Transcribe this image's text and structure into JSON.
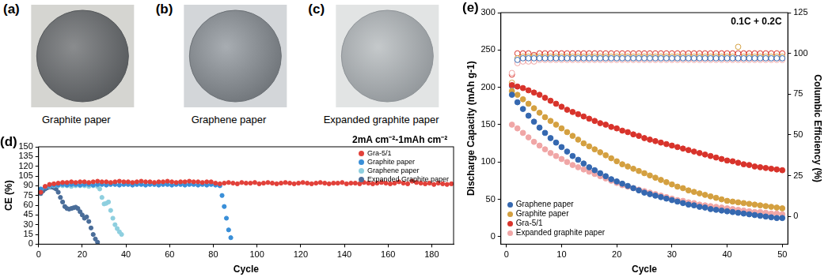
{
  "photos": [
    {
      "label": "(a)",
      "caption": "Graphite paper"
    },
    {
      "label": "(b)",
      "caption": "Graphene paper"
    },
    {
      "label": "(c)",
      "caption": "Expanded graphite paper"
    }
  ],
  "chart_data": [
    {
      "type": "scatter",
      "title": "(d)",
      "annotations": [
        "2mA cm⁻²-1mAh cm⁻²"
      ],
      "x_label": "Cycle",
      "y_label": "CE (%)",
      "xlim": [
        0,
        190
      ],
      "xticks": [
        0,
        20,
        40,
        60,
        80,
        100,
        120,
        140,
        160,
        180
      ],
      "ylim": [
        0,
        150
      ],
      "yticks": [
        0,
        15,
        30,
        45,
        60,
        75,
        90,
        105,
        120,
        135,
        150
      ],
      "legend": "upper right",
      "series": [
        {
          "name": "Gra-5/1",
          "color": "#e2413a",
          "marker": "circle",
          "x": [
            1,
            3,
            5,
            7,
            9,
            11,
            13,
            15,
            17,
            19,
            21,
            23,
            25,
            27,
            29,
            31,
            33,
            35,
            37,
            39,
            41,
            43,
            45,
            47,
            49,
            51,
            53,
            55,
            57,
            59,
            61,
            63,
            65,
            67,
            69,
            71,
            73,
            75,
            77,
            79,
            81,
            83,
            85,
            87,
            89,
            91,
            93,
            95,
            97,
            99,
            101,
            103,
            105,
            107,
            109,
            111,
            113,
            115,
            117,
            119,
            121,
            123,
            125,
            127,
            129,
            131,
            133,
            135,
            137,
            139,
            141,
            143,
            145,
            147,
            149,
            151,
            153,
            155,
            157,
            159,
            161,
            163,
            165,
            167,
            169,
            171,
            173,
            175,
            177,
            179,
            181,
            183,
            185,
            187,
            189
          ],
          "values": [
            80,
            89,
            92,
            93,
            94,
            95,
            95,
            96,
            95,
            96,
            96,
            95,
            96,
            97,
            96,
            96,
            95,
            96,
            97,
            96,
            96,
            95,
            96,
            97,
            96,
            96,
            95,
            96,
            96,
            97,
            96,
            95,
            96,
            96,
            97,
            96,
            96,
            95,
            96,
            96,
            94,
            93,
            94,
            95,
            94,
            93,
            95,
            94,
            94,
            95,
            93,
            94,
            95,
            94,
            93,
            94,
            95,
            94,
            93,
            94,
            95,
            94,
            93,
            94,
            95,
            94,
            93,
            94,
            94,
            95,
            93,
            94,
            94,
            93,
            95,
            94,
            93,
            94,
            95,
            94,
            93,
            94,
            96,
            94,
            93,
            97,
            95,
            94,
            93,
            94,
            92,
            94,
            93,
            92,
            93
          ]
        },
        {
          "name": "Graphite paper",
          "color": "#3a8fd8",
          "marker": "circle",
          "x": [
            1,
            3,
            5,
            7,
            9,
            11,
            13,
            15,
            17,
            19,
            21,
            23,
            25,
            27,
            29,
            31,
            33,
            35,
            37,
            39,
            41,
            43,
            45,
            47,
            49,
            51,
            53,
            55,
            57,
            59,
            61,
            63,
            65,
            67,
            69,
            71,
            73,
            75,
            77,
            79,
            81,
            83,
            84,
            85,
            86,
            87,
            88
          ],
          "values": [
            85,
            88,
            90,
            91,
            91,
            92,
            91,
            92,
            92,
            91,
            92,
            92,
            91,
            92,
            92,
            91,
            92,
            92,
            91,
            92,
            92,
            91,
            92,
            92,
            91,
            92,
            92,
            91,
            92,
            92,
            91,
            92,
            92,
            91,
            92,
            92,
            91,
            92,
            91,
            92,
            91,
            90,
            75,
            58,
            40,
            22,
            10
          ]
        },
        {
          "name": "Graphene paper",
          "color": "#8ecfdf",
          "marker": "circle",
          "x": [
            1,
            3,
            5,
            7,
            9,
            11,
            13,
            15,
            17,
            19,
            21,
            23,
            25,
            27,
            28,
            29,
            30,
            31,
            32,
            33,
            34,
            35,
            36,
            37,
            38
          ],
          "values": [
            84,
            88,
            89,
            90,
            90,
            90,
            90,
            89,
            90,
            90,
            90,
            89,
            90,
            89,
            85,
            72,
            62,
            63,
            65,
            52,
            40,
            30,
            24,
            19,
            15
          ]
        },
        {
          "name": "Expanded Graphite paper",
          "color": "#4a6d99",
          "marker": "circle",
          "x": [
            1,
            2,
            3,
            4,
            5,
            6,
            7,
            8,
            9,
            10,
            11,
            12,
            13,
            14,
            15,
            16,
            17,
            18,
            19,
            20,
            21,
            22,
            23,
            24,
            25,
            26,
            27
          ],
          "values": [
            78,
            82,
            85,
            87,
            88,
            88,
            87,
            85,
            80,
            72,
            65,
            58,
            55,
            54,
            55,
            56,
            57,
            55,
            50,
            45,
            40,
            42,
            35,
            25,
            15,
            8,
            3
          ]
        }
      ]
    },
    {
      "type": "scatter",
      "title": "(e)",
      "annotations": [
        "0.1C + 0.2C"
      ],
      "x_label": "Cycle",
      "y_label": "Discharge Capacity (mAh g-1)",
      "y2_label": "Columbic Efficiency (%)",
      "x": [
        1,
        2,
        3,
        4,
        5,
        6,
        7,
        8,
        9,
        10,
        11,
        12,
        13,
        14,
        15,
        16,
        17,
        18,
        19,
        20,
        21,
        22,
        23,
        24,
        25,
        26,
        27,
        28,
        29,
        30,
        31,
        32,
        33,
        34,
        35,
        36,
        37,
        38,
        39,
        40,
        41,
        42,
        43,
        44,
        45,
        46,
        47,
        48,
        49,
        50
      ],
      "xlim": [
        -1,
        51
      ],
      "xticks": [
        0,
        10,
        20,
        30,
        40,
        50
      ],
      "ylim": [
        -10,
        300
      ],
      "yticks": [
        0,
        50,
        100,
        150,
        200,
        250,
        300
      ],
      "y2lim": [
        -17,
        125
      ],
      "y2ticks": [
        0,
        25,
        50,
        75,
        100,
        125
      ],
      "legend": "lower left",
      "series": [
        {
          "name": "Graphene paper",
          "color": "#3568b0",
          "marker": "circle",
          "values": [
            190,
            180,
            171,
            162,
            154,
            146,
            139,
            132,
            126,
            120,
            114,
            108,
            103,
            98,
            93,
            89,
            85,
            81,
            77,
            74,
            71,
            68,
            65,
            62,
            59,
            57,
            55,
            53,
            51,
            49,
            47,
            45,
            43,
            42,
            40,
            39,
            37,
            36,
            35,
            34,
            33,
            32,
            31,
            30,
            29,
            28,
            27,
            26,
            25,
            25
          ]
        },
        {
          "name": "Graphite paper",
          "color": "#d4a040",
          "marker": "circle",
          "values": [
            195,
            190,
            184,
            178,
            172,
            166,
            160,
            155,
            150,
            145,
            140,
            135,
            130,
            125,
            121,
            117,
            113,
            109,
            105,
            101,
            97,
            94,
            91,
            88,
            85,
            82,
            79,
            76,
            73,
            70,
            67,
            65,
            62,
            60,
            58,
            56,
            54,
            52,
            50,
            48,
            47,
            46,
            45,
            44,
            43,
            42,
            41,
            40,
            39,
            38
          ]
        },
        {
          "name": "Gra-5/1",
          "color": "#d8332b",
          "marker": "circle",
          "values": [
            203,
            201,
            199,
            196,
            193,
            190,
            186,
            182,
            178,
            174,
            170,
            167,
            164,
            161,
            158,
            155,
            152,
            150,
            147,
            145,
            142,
            140,
            137,
            135,
            132,
            130,
            128,
            126,
            124,
            122,
            120,
            118,
            116,
            114,
            112,
            110,
            108,
            106,
            104,
            102,
            101,
            99,
            97,
            96,
            94,
            93,
            92,
            91,
            90,
            89
          ]
        },
        {
          "name": "Expanded graphite paper",
          "color": "#f0a6a6",
          "marker": "circle",
          "values": [
            150,
            145,
            139,
            133,
            127,
            122,
            117,
            112,
            108,
            104,
            100,
            96,
            93,
            90,
            87,
            84,
            81,
            78,
            75,
            72,
            69,
            67,
            65,
            63,
            61,
            59,
            57,
            55,
            53,
            51,
            49,
            48,
            46,
            45,
            43,
            42,
            41,
            40,
            39,
            38,
            37,
            36,
            35,
            34,
            33,
            33,
            32,
            31,
            31,
            30
          ]
        },
        {
          "name": "Graphene paper",
          "color": "#3568b0",
          "marker": "circle_open",
          "axis": "y2",
          "values": [
            80,
            96,
            97,
            97,
            97,
            97,
            97,
            97,
            97,
            97,
            97,
            97,
            97,
            97,
            97,
            97,
            97,
            97,
            97,
            97,
            97,
            97,
            97,
            97,
            97,
            97,
            97,
            97,
            97,
            97,
            97,
            97,
            97,
            97,
            97,
            97,
            97,
            97,
            97,
            97,
            97,
            97,
            97,
            97,
            97,
            97,
            97,
            97,
            97,
            97
          ]
        },
        {
          "name": "Graphite paper",
          "color": "#d4a040",
          "marker": "circle_open",
          "axis": "y2",
          "values": [
            82,
            97,
            98,
            98,
            98,
            98,
            98,
            98,
            98,
            98,
            98,
            98,
            98,
            98,
            98,
            98,
            98,
            98,
            98,
            98,
            98,
            98,
            98,
            98,
            98,
            98,
            98,
            98,
            98,
            98,
            98,
            98,
            98,
            98,
            98,
            98,
            98,
            98,
            98,
            98,
            98,
            104,
            98,
            98,
            98,
            98,
            98,
            98,
            98,
            98
          ]
        },
        {
          "name": "Expanded graphite paper",
          "color": "#f0a6a6",
          "marker": "circle_open",
          "axis": "y2",
          "values": [
            88,
            94,
            95,
            95,
            95,
            96,
            96,
            96,
            96,
            96,
            96,
            96,
            96,
            96,
            96,
            96,
            96,
            96,
            96,
            96,
            96,
            96,
            96,
            96,
            96,
            96,
            96,
            96,
            96,
            96,
            96,
            96,
            96,
            96,
            96,
            96,
            96,
            96,
            96,
            96,
            96,
            96,
            96,
            96,
            96,
            96,
            96,
            96,
            96,
            96
          ]
        },
        {
          "name": "Gra-5/1",
          "color": "#d8332b",
          "marker": "circle_open",
          "axis": "y2",
          "values": [
            87,
            100,
            100,
            100,
            99,
            100,
            100,
            100,
            100,
            100,
            100,
            100,
            100,
            100,
            100,
            100,
            100,
            100,
            100,
            100,
            100,
            100,
            100,
            100,
            100,
            100,
            100,
            100,
            100,
            100,
            100,
            100,
            100,
            100,
            100,
            100,
            100,
            100,
            100,
            100,
            100,
            100,
            100,
            100,
            100,
            100,
            100,
            100,
            100,
            100
          ]
        }
      ]
    }
  ]
}
